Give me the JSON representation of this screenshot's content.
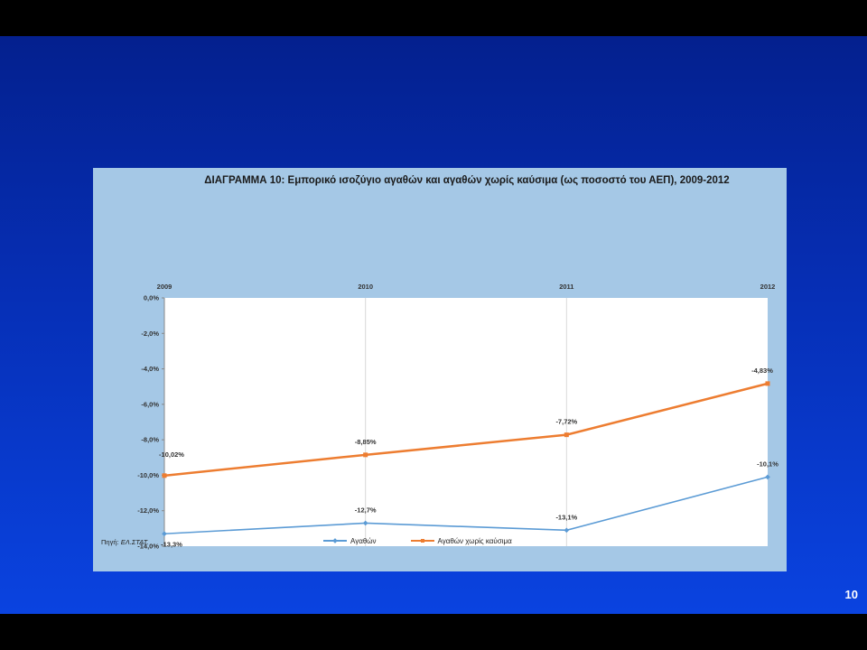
{
  "slide": {
    "page_number": "10",
    "source_label": "Πηγή: ",
    "source_value": "ΕΛ.ΣΤΑΤ."
  },
  "colors": {
    "background_top": "#04208e",
    "background_bottom": "#0a43e0",
    "panel": "#a5c8e6",
    "series_goods": "#5b9bd5",
    "series_goods_no_fuel": "#ed7d31"
  },
  "chart_data": {
    "type": "line",
    "title": "ΔΙΑΓΡΑΜΜΑ 10: Εμπορικό ισοζύγιο αγαθών και αγαθών χωρίς καύσιμα (ως ποσοστό του ΑΕΠ), 2009-2012",
    "categories": [
      "2009",
      "2010",
      "2011",
      "2012"
    ],
    "x_axis_position": "top",
    "ylim": [
      -14,
      0
    ],
    "yticks": [
      0,
      -2,
      -4,
      -6,
      -8,
      -10,
      -12,
      -14
    ],
    "ytick_labels": [
      "0,0%",
      "-2,0%",
      "-4,0%",
      "-6,0%",
      "-8,0%",
      "-10,0%",
      "-12,0%",
      "-14,0%"
    ],
    "grid": "vertical",
    "legend_position": "bottom",
    "series": [
      {
        "name": "Αγαθών",
        "color": "#5b9bd5",
        "marker": "diamond",
        "values": [
          -13.3,
          -12.7,
          -13.1,
          -10.1
        ],
        "data_labels": [
          "-13,3%",
          "-12,7%",
          "-13,1%",
          "-10,1%"
        ]
      },
      {
        "name": "Αγαθών χωρίς καύσιμα",
        "color": "#ed7d31",
        "marker": "square",
        "values": [
          -10.02,
          -8.85,
          -7.72,
          -4.83
        ],
        "data_labels": [
          "-10,02%",
          "-8,85%",
          "-7,72%",
          "-4,83%"
        ]
      }
    ]
  }
}
